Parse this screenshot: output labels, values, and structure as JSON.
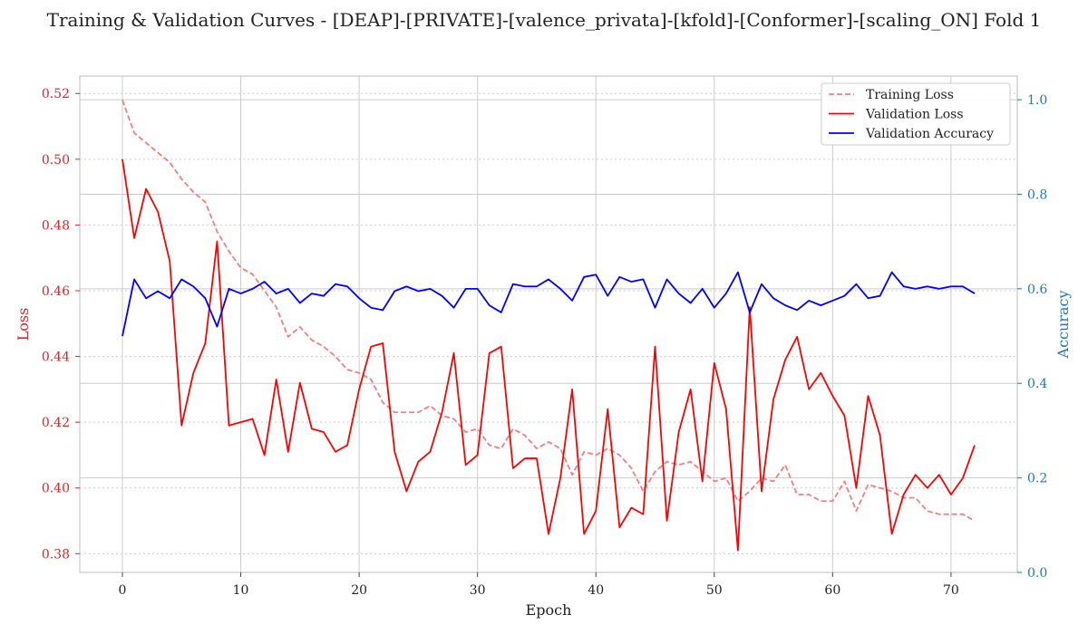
{
  "chart_data": {
    "type": "line",
    "title": "Training & Validation Curves - [DEAP]-[PRIVATE]-[valence_privata]-[kfold]-[Conformer]-[scaling_ON] Fold 1",
    "xlabel": "Epoch",
    "ylabel": "Loss",
    "y2label": "Accuracy",
    "xlim": [
      -3.6,
      75.6
    ],
    "ylim": [
      0.3743,
      0.5253
    ],
    "y2lim": [
      0.0,
      1.05
    ],
    "xticks": [
      0,
      10,
      20,
      30,
      40,
      50,
      60,
      70
    ],
    "yticks": [
      0.38,
      0.4,
      0.42,
      0.44,
      0.46,
      0.48,
      0.5,
      0.52
    ],
    "y2ticks": [
      0.0,
      0.2,
      0.4,
      0.6,
      0.8,
      1.0
    ],
    "grid": true,
    "legend_position": "top-right",
    "colors": {
      "training_loss": "#f08080",
      "validation_loss": "#ff0000",
      "validation_accuracy": "#0000ff",
      "left_axis": "#d62728",
      "right_axis": "#1f77b4"
    },
    "x": [
      0,
      1,
      2,
      3,
      4,
      5,
      6,
      7,
      8,
      9,
      10,
      11,
      12,
      13,
      14,
      15,
      16,
      17,
      18,
      19,
      20,
      21,
      22,
      23,
      24,
      25,
      26,
      27,
      28,
      29,
      30,
      31,
      32,
      33,
      34,
      35,
      36,
      37,
      38,
      39,
      40,
      41,
      42,
      43,
      44,
      45,
      46,
      47,
      48,
      49,
      50,
      51,
      52,
      53,
      54,
      55,
      56,
      57,
      58,
      59,
      60,
      61,
      62,
      63,
      64,
      65,
      66,
      67,
      68,
      69,
      70,
      71,
      72
    ],
    "series": [
      {
        "name": "Training Loss",
        "axis": "left",
        "style": "dashed",
        "values": [
          0.518,
          0.508,
          0.505,
          0.502,
          0.499,
          0.494,
          0.49,
          0.487,
          0.478,
          0.472,
          0.467,
          0.465,
          0.46,
          0.455,
          0.446,
          0.449,
          0.445,
          0.443,
          0.44,
          0.436,
          0.435,
          0.433,
          0.426,
          0.423,
          0.423,
          0.423,
          0.425,
          0.422,
          0.421,
          0.417,
          0.418,
          0.413,
          0.412,
          0.418,
          0.416,
          0.412,
          0.414,
          0.412,
          0.404,
          0.411,
          0.41,
          0.412,
          0.41,
          0.406,
          0.399,
          0.405,
          0.408,
          0.407,
          0.408,
          0.405,
          0.402,
          0.403,
          0.396,
          0.399,
          0.403,
          0.402,
          0.407,
          0.398,
          0.398,
          0.396,
          0.396,
          0.402,
          0.393,
          0.401,
          0.4,
          0.399,
          0.397,
          0.397,
          0.393,
          0.392,
          0.392,
          0.392,
          0.39
        ]
      },
      {
        "name": "Validation Loss",
        "axis": "left",
        "style": "solid",
        "values": [
          0.5,
          0.476,
          0.491,
          0.484,
          0.469,
          0.419,
          0.435,
          0.444,
          0.475,
          0.419,
          0.42,
          0.421,
          0.41,
          0.433,
          0.411,
          0.432,
          0.418,
          0.417,
          0.411,
          0.413,
          0.43,
          0.443,
          0.444,
          0.411,
          0.399,
          0.408,
          0.411,
          0.423,
          0.441,
          0.407,
          0.41,
          0.441,
          0.443,
          0.406,
          0.409,
          0.409,
          0.386,
          0.403,
          0.43,
          0.386,
          0.393,
          0.424,
          0.388,
          0.394,
          0.392,
          0.443,
          0.39,
          0.417,
          0.43,
          0.402,
          0.438,
          0.424,
          0.381,
          0.455,
          0.399,
          0.427,
          0.439,
          0.446,
          0.43,
          0.435,
          0.428,
          0.422,
          0.4,
          0.428,
          0.416,
          0.386,
          0.398,
          0.404,
          0.4,
          0.404,
          0.398,
          0.403,
          0.413
        ]
      },
      {
        "name": "Validation Accuracy",
        "axis": "right",
        "style": "solid",
        "values": [
          0.5,
          0.62,
          0.58,
          0.595,
          0.58,
          0.62,
          0.605,
          0.58,
          0.52,
          0.6,
          0.59,
          0.6,
          0.615,
          0.59,
          0.6,
          0.57,
          0.59,
          0.585,
          0.61,
          0.605,
          0.58,
          0.56,
          0.555,
          0.595,
          0.605,
          0.595,
          0.6,
          0.585,
          0.56,
          0.6,
          0.6,
          0.565,
          0.55,
          0.61,
          0.605,
          0.605,
          0.62,
          0.6,
          0.575,
          0.625,
          0.63,
          0.585,
          0.625,
          0.615,
          0.62,
          0.56,
          0.62,
          0.59,
          0.57,
          0.6,
          0.56,
          0.59,
          0.635,
          0.55,
          0.61,
          0.58,
          0.565,
          0.555,
          0.575,
          0.565,
          0.575,
          0.585,
          0.61,
          0.58,
          0.585,
          0.635,
          0.605,
          0.6,
          0.605,
          0.6,
          0.605,
          0.605,
          0.59
        ]
      }
    ]
  }
}
